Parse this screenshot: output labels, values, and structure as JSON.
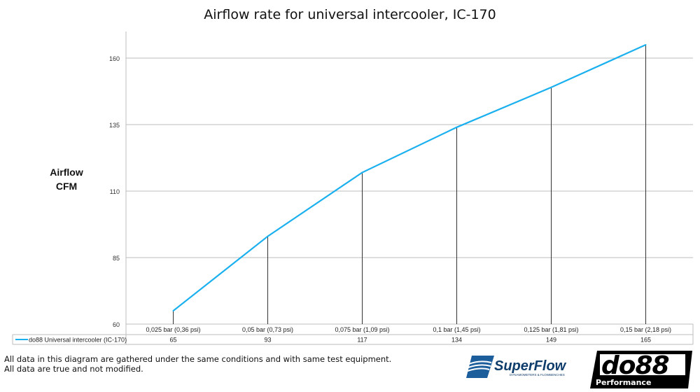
{
  "chart_data": {
    "type": "line",
    "title": "Airflow rate for universal intercooler, IC-170",
    "ylabel": [
      "Airflow",
      "CFM"
    ],
    "xlabel": "",
    "categories": [
      "0,025 bar (0,36 psi)",
      "0,05 bar (0,73 psi)",
      "0,075 bar (1,09 psi)",
      "0,1 bar (1,45 psi)",
      "0,125 bar (1,81 psi)",
      "0,15 bar (2,18 psi)"
    ],
    "series": [
      {
        "name": "do88 Universal intercooler (IC-170)",
        "values": [
          65,
          93,
          117,
          134,
          149,
          165
        ],
        "color": "#1ab0ef"
      }
    ],
    "yticks": [
      60,
      85,
      110,
      135,
      160
    ],
    "ylim": [
      60,
      170
    ],
    "grid": true,
    "legend": "data-table"
  },
  "footer": {
    "line1": "All data in this diagram are gathered under the same conditions and with same test equipment.",
    "line2": "All data are true and not modified."
  },
  "logos": {
    "superflow": "SuperFlow",
    "superflow_sub": "DYNAMOMETERS & FLOWBENCHES",
    "do88": "do88",
    "do88_sub": "Performance"
  }
}
